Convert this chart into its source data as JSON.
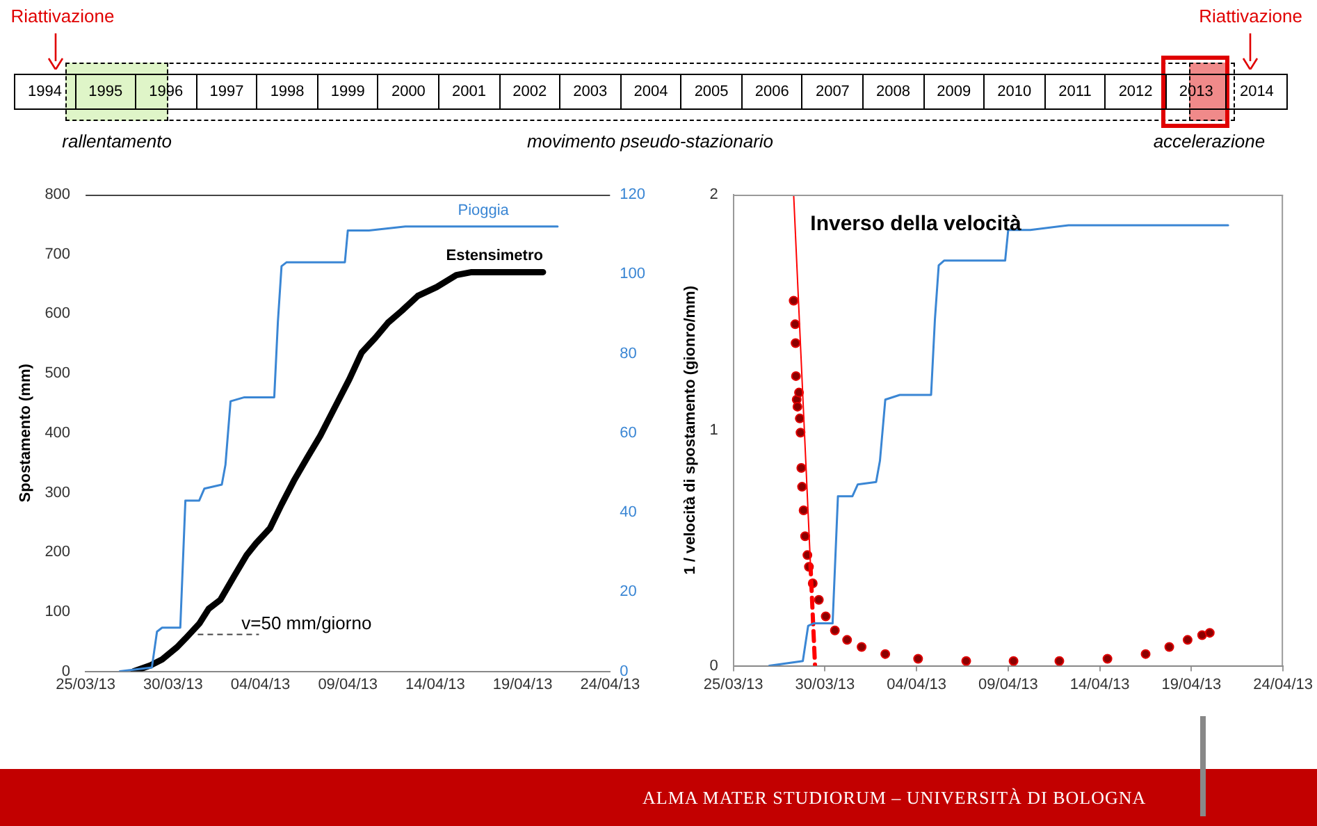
{
  "chart_data": [
    {
      "type": "bar",
      "orientation": "horizontal",
      "categories": [
        null
      ],
      "legend": "top right",
      "xlim": [
        1994,
        2015
      ],
      "xticks": [
        {
          "value": 1994.5,
          "label": "1994"
        },
        {
          "value": 1995.5,
          "label": "1995"
        },
        {
          "value": 1996.5,
          "label": "1996"
        },
        {
          "value": 1997.5,
          "label": "1997"
        },
        {
          "value": 1998.5,
          "label": "1998"
        },
        {
          "value": 1999.5,
          "label": "1999"
        },
        {
          "value": 2000.5,
          "label": "2000"
        },
        {
          "value": 2001.5,
          "label": "2001"
        },
        {
          "value": 2002.5,
          "label": "2002"
        },
        {
          "value": 2003.5,
          "label": "2003"
        },
        {
          "value": 2004.5,
          "label": "2004"
        },
        {
          "value": 2005.5,
          "label": "2005"
        },
        {
          "value": 2006.5,
          "label": "2006"
        },
        {
          "value": 2007.5,
          "label": "2007"
        },
        {
          "value": 2008.5,
          "label": "2008"
        },
        {
          "value": 2009.5,
          "label": "2009"
        },
        {
          "value": 2010.5,
          "label": "2010"
        },
        {
          "value": 2011.5,
          "label": "2011"
        },
        {
          "value": 2012.5,
          "label": "2012"
        },
        {
          "value": 2013.5,
          "label": "2013"
        },
        {
          "value": 2014.5,
          "label": "2014"
        }
      ],
      "series": [
        {
          "name": "movimento pseudo-stazionario",
          "color": "#ffffff",
          "base": [
            1994.85
          ],
          "values": [
            19.3
          ]
        },
        {
          "name": "rallentamento",
          "color": "#dff5c8",
          "base": [
            1994.85
          ],
          "values": [
            1.7
          ]
        },
        {
          "name": "accelerazione",
          "color": "#f08a8a",
          "base": [
            2013.4
          ],
          "values": [
            0.65
          ]
        }
      ],
      "ref_lines": [
        {
          "axis": "x",
          "value": 1994.69,
          "label": "Riattivazione",
          "color": "#e00000"
        },
        {
          "axis": "x",
          "value": 2014.41,
          "label": "Riattivazione",
          "color": "#e00000"
        }
      ],
      "annotations": [
        "ALMA MATER STUDIORUM – UNIVERSITÀ DI BOLOGNA"
      ]
    },
    {
      "type": "line",
      "ylabel": "Spostamento (mm)",
      "grid": false,
      "legend": false,
      "xlim": [
        "2013-03-25",
        "2013-04-24"
      ],
      "xticks": [
        {
          "value": "2013-03-25",
          "label": "25/03/13"
        },
        {
          "value": "2013-03-30",
          "label": "30/03/13"
        },
        {
          "value": "2013-04-04",
          "label": "04/04/13"
        },
        {
          "value": "2013-04-09",
          "label": "09/04/13"
        },
        {
          "value": "2013-04-14",
          "label": "14/04/13"
        },
        {
          "value": "2013-04-19",
          "label": "19/04/13"
        },
        {
          "value": "2013-04-24",
          "label": "24/04/13"
        }
      ],
      "ylim": [
        0,
        800
      ],
      "yticks": [
        0,
        100,
        200,
        300,
        400,
        500,
        600,
        700,
        800
      ],
      "y2lim": [
        0,
        120
      ],
      "y2ticks": [
        0,
        20,
        40,
        60,
        80,
        100,
        120
      ],
      "annotations": [
        {
          "text": "v=50 mm/giorno",
          "x": "2013-03-31T10:00",
          "y": 62
        }
      ],
      "series": [
        {
          "name": "Pioggia",
          "color": "#3a86d4",
          "axis": "y2",
          "x": [
            "2013-03-26T23:00",
            "2013-03-28T19:00",
            "2013-03-29T02:00",
            "2013-03-29T09:00",
            "2013-03-30T10:00",
            "2013-03-30T17:00",
            "2013-03-31T00:00",
            "2013-03-31T12:00",
            "2013-03-31T19:00",
            "2013-04-01T19:00",
            "2013-04-02T00:00",
            "2013-04-02T07:00",
            "2013-04-03T02:00",
            "2013-04-04T19:00",
            "2013-04-05T00:00",
            "2013-04-05T05:00",
            "2013-04-05T12:00",
            "2013-04-06T19:00",
            "2013-04-08T20:00",
            "2013-04-09T00:00",
            "2013-04-10T02:00",
            "2013-04-10T05:00",
            "2013-04-12T07:00",
            "2013-04-12T14:00",
            "2013-04-21T00:00"
          ],
          "values": [
            0,
            1,
            10,
            11,
            11,
            43,
            43,
            43,
            46,
            47,
            52,
            68,
            69,
            69,
            88,
            102,
            103,
            103,
            103,
            111,
            111,
            111,
            112,
            112,
            112
          ]
        },
        {
          "name": "Estensimetro",
          "color": "#000000",
          "x": [
            "2013-03-27T18:00",
            "2013-03-28T17:00",
            "2013-03-29T09:00",
            "2013-03-30T05:00",
            "2013-03-30T17:00",
            "2013-03-31T12:00",
            "2013-04-01T01:00",
            "2013-04-01T17:00",
            "2013-04-02T12:00",
            "2013-04-03T05:00",
            "2013-04-03T18:00",
            "2013-04-04T13:00",
            "2013-04-05T05:00",
            "2013-04-05T22:00",
            "2013-04-06T17:00",
            "2013-04-07T10:00",
            "2013-04-08T07:00",
            "2013-04-09T02:00",
            "2013-04-09T19:00",
            "2013-04-10T14:00",
            "2013-04-11T07:00",
            "2013-04-12T02:00",
            "2013-04-13T00:00",
            "2013-04-14T02:00",
            "2013-04-15T05:00",
            "2013-04-16T02:00",
            "2013-04-20T04:00"
          ],
          "values": [
            0,
            10,
            20,
            40,
            55,
            80,
            105,
            120,
            160,
            195,
            215,
            240,
            280,
            320,
            360,
            395,
            445,
            490,
            535,
            560,
            585,
            605,
            630,
            645,
            665,
            670,
            670
          ]
        }
      ]
    },
    {
      "type": "line",
      "title": "Inverso della velocità",
      "ylabel": "1 / velocità di spostamento (gionro/mm)",
      "grid": false,
      "legend": false,
      "xlim": [
        "2013-03-25",
        "2013-04-24"
      ],
      "xticks": [
        {
          "value": "2013-03-25",
          "label": "25/03/13"
        },
        {
          "value": "2013-03-30",
          "label": "30/03/13"
        },
        {
          "value": "2013-04-04",
          "label": "04/04/13"
        },
        {
          "value": "2013-04-09",
          "label": "09/04/13"
        },
        {
          "value": "2013-04-14",
          "label": "14/04/13"
        },
        {
          "value": "2013-04-19",
          "label": "19/04/13"
        },
        {
          "value": "2013-04-24",
          "label": "24/04/13"
        }
      ],
      "ylim": [
        0,
        2
      ],
      "yticks": [
        0,
        1,
        2
      ],
      "series": [
        {
          "color": "#3a86d4",
          "x": [
            "2013-03-26T23:00",
            "2013-03-28T19:00",
            "2013-03-29T02:00",
            "2013-03-29T09:00",
            "2013-03-30T10:00",
            "2013-03-30T17:00",
            "2013-03-31T00:00",
            "2013-03-31T12:00",
            "2013-03-31T19:00",
            "2013-04-01T19:00",
            "2013-04-02T00:00",
            "2013-04-02T07:00",
            "2013-04-03T02:00",
            "2013-04-04T19:00",
            "2013-04-05T00:00",
            "2013-04-05T05:00",
            "2013-04-05T12:00",
            "2013-04-06T19:00",
            "2013-04-08T20:00",
            "2013-04-09T00:00",
            "2013-04-10T02:00",
            "2013-04-10T05:00",
            "2013-04-12T07:00",
            "2013-04-12T14:00",
            "2013-04-21T00:00"
          ],
          "values": [
            0,
            0.02,
            0.17,
            0.18,
            0.18,
            0.72,
            0.72,
            0.72,
            0.77,
            0.78,
            0.87,
            1.13,
            1.15,
            1.15,
            1.47,
            1.7,
            1.72,
            1.72,
            1.72,
            1.85,
            1.85,
            1.85,
            1.87,
            1.87,
            1.87
          ]
        },
        {
          "color": "#ff0000",
          "line_style": "solid",
          "x": [
            "2013-03-28T07:00",
            "2013-03-29T05:00"
          ],
          "values": [
            2,
            0.43
          ]
        },
        {
          "color": "#ff0000",
          "line_style": "dashed",
          "x": [
            "2013-03-29T05:00",
            "2013-03-29T11:00"
          ],
          "values": [
            0.43,
            0
          ]
        },
        {
          "type": "scatter",
          "color": "#8b0000",
          "marker": "circle",
          "x": [
            "2013-03-28T07:00",
            "2013-03-28T09:00",
            "2013-03-28T09:30",
            "2013-03-28T10:00",
            "2013-03-28T11:00",
            "2013-03-28T12:00",
            "2013-03-28T14:00",
            "2013-03-28T15:00",
            "2013-03-28T16:00",
            "2013-03-28T17:00",
            "2013-03-28T18:00",
            "2013-03-28T20:00",
            "2013-03-28T22:00",
            "2013-03-29T01:00",
            "2013-03-29T03:00",
            "2013-03-29T08:00",
            "2013-03-29T16:00",
            "2013-03-30T01:00",
            "2013-03-30T13:00",
            "2013-03-31T05:00",
            "2013-04-01T00:00",
            "2013-04-02T07:00",
            "2013-04-04T02:00",
            "2013-04-06T17:00",
            "2013-04-09T07:00",
            "2013-04-11T19:00",
            "2013-04-14T10:00",
            "2013-04-16T12:00",
            "2013-04-17T19:00",
            "2013-04-18T19:00",
            "2013-04-19T14:00",
            "2013-04-20T00:00"
          ],
          "values": [
            1.55,
            1.45,
            1.37,
            1.23,
            1.13,
            1.1,
            1.16,
            1.05,
            0.99,
            0.84,
            0.76,
            0.66,
            0.55,
            0.47,
            0.42,
            0.35,
            0.28,
            0.21,
            0.15,
            0.11,
            0.08,
            0.05,
            0.03,
            0.02,
            0.02,
            0.02,
            0.03,
            0.05,
            0.08,
            0.11,
            0.13,
            0.14
          ]
        }
      ]
    }
  ]
}
